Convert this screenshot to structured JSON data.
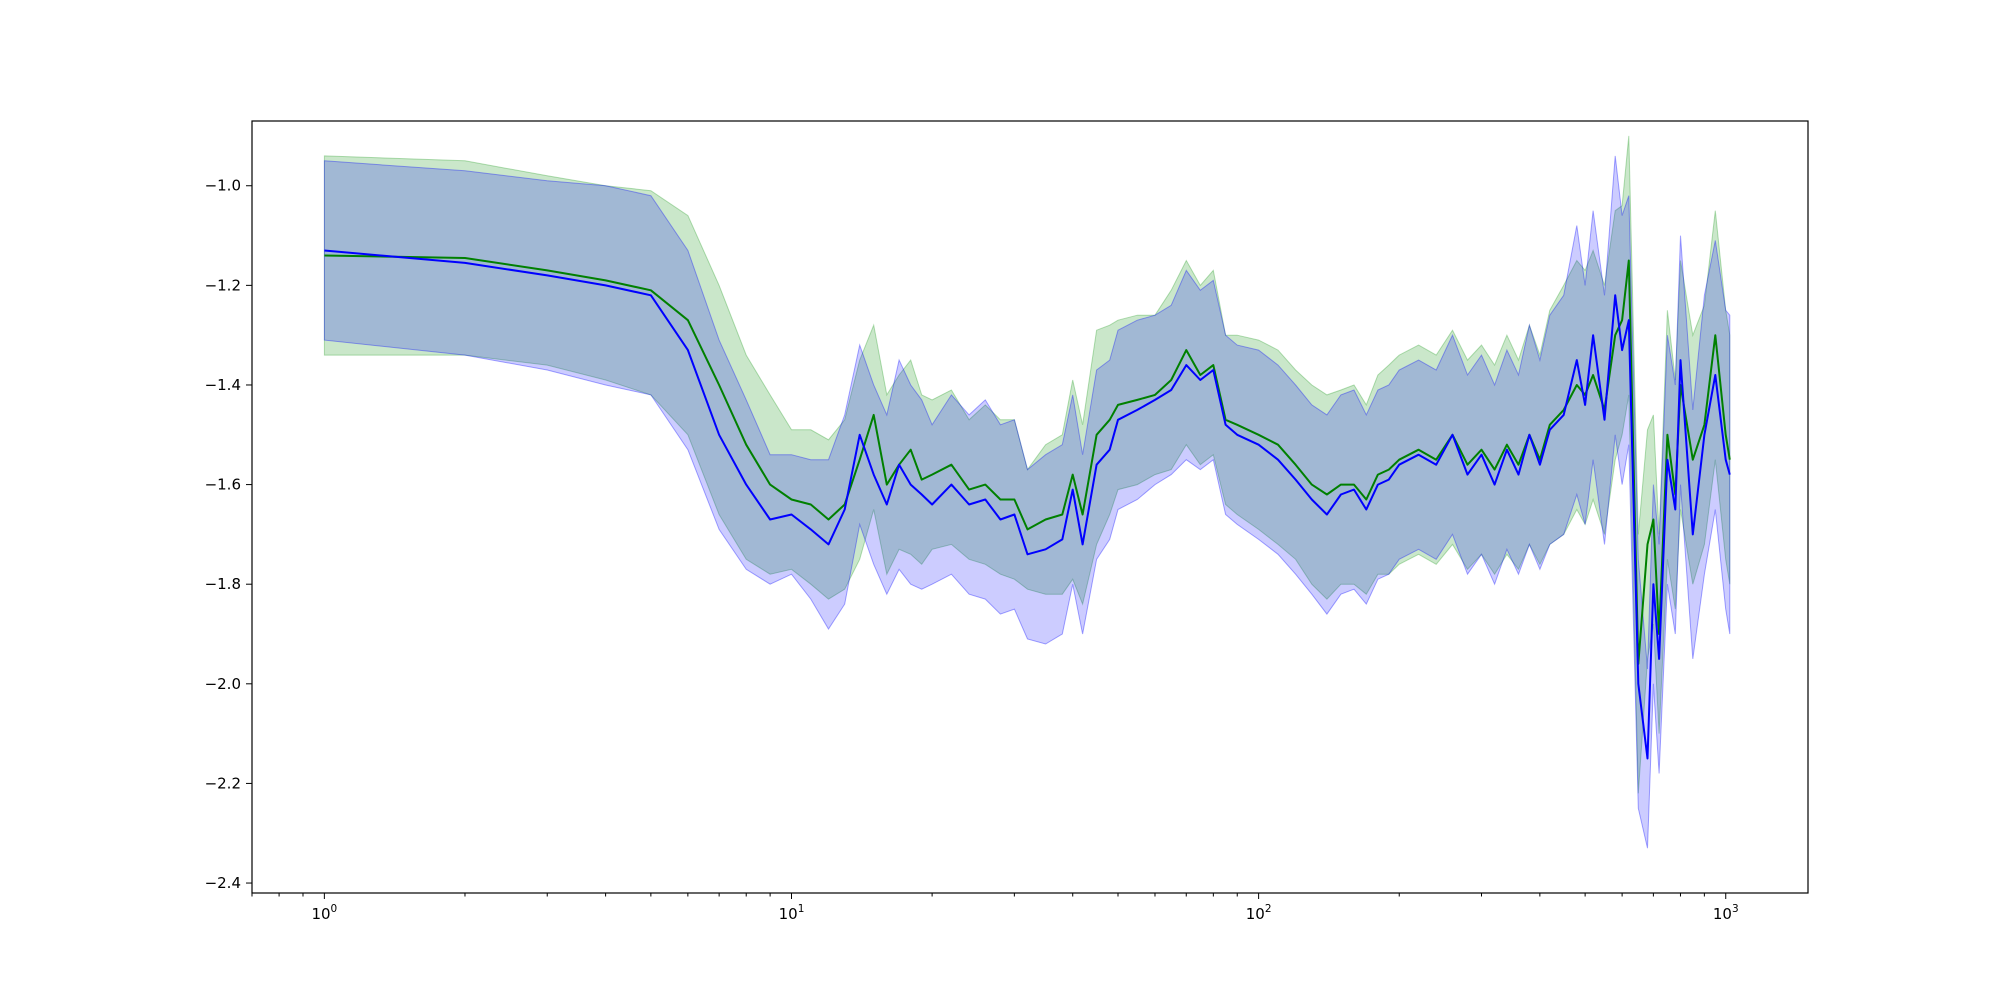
{
  "chart_data": {
    "type": "line",
    "title": "",
    "xlabel": "",
    "ylabel": "",
    "xscale": "log",
    "xlim": [
      0.7,
      1500
    ],
    "ylim": [
      -2.42,
      -0.87
    ],
    "grid": false,
    "legend": "none",
    "x_ticks": [
      {
        "base": "10",
        "exp": "0",
        "value": 1
      },
      {
        "base": "10",
        "exp": "1",
        "value": 10
      },
      {
        "base": "10",
        "exp": "2",
        "value": 100
      },
      {
        "base": "10",
        "exp": "3",
        "value": 1000
      }
    ],
    "y_ticks": [
      {
        "label": "−1.0",
        "value": -1.0
      },
      {
        "label": "−1.2",
        "value": -1.2
      },
      {
        "label": "−1.4",
        "value": -1.4
      },
      {
        "label": "−1.6",
        "value": -1.6
      },
      {
        "label": "−1.8",
        "value": -1.8
      },
      {
        "label": "−2.0",
        "value": -2.0
      },
      {
        "label": "−2.2",
        "value": -2.2
      },
      {
        "label": "−2.4",
        "value": -2.4
      }
    ],
    "series": [
      {
        "color": "#008000",
        "band_color": "#2ca02c",
        "band_opacity": 0.25,
        "x": [
          1,
          2,
          3,
          4,
          5,
          6,
          7,
          8,
          9,
          10,
          11,
          12,
          13,
          14,
          15,
          16,
          17,
          18,
          19,
          20,
          22,
          24,
          26,
          28,
          30,
          32,
          35,
          38,
          40,
          42,
          45,
          48,
          50,
          55,
          60,
          65,
          70,
          75,
          80,
          85,
          90,
          100,
          110,
          120,
          130,
          140,
          150,
          160,
          170,
          180,
          190,
          200,
          220,
          240,
          260,
          280,
          300,
          320,
          340,
          360,
          380,
          400,
          420,
          450,
          480,
          500,
          520,
          550,
          580,
          600,
          620,
          650,
          680,
          700,
          720,
          750,
          780,
          800,
          850,
          900,
          950,
          1000,
          1020
        ],
        "y": [
          -1.14,
          -1.145,
          -1.17,
          -1.19,
          -1.21,
          -1.27,
          -1.4,
          -1.52,
          -1.6,
          -1.63,
          -1.64,
          -1.67,
          -1.64,
          -1.55,
          -1.46,
          -1.6,
          -1.56,
          -1.53,
          -1.59,
          -1.58,
          -1.56,
          -1.61,
          -1.6,
          -1.63,
          -1.63,
          -1.69,
          -1.67,
          -1.66,
          -1.58,
          -1.66,
          -1.5,
          -1.47,
          -1.44,
          -1.43,
          -1.42,
          -1.39,
          -1.33,
          -1.38,
          -1.36,
          -1.47,
          -1.48,
          -1.5,
          -1.52,
          -1.56,
          -1.6,
          -1.62,
          -1.6,
          -1.6,
          -1.63,
          -1.58,
          -1.57,
          -1.55,
          -1.53,
          -1.55,
          -1.5,
          -1.56,
          -1.53,
          -1.57,
          -1.52,
          -1.56,
          -1.5,
          -1.55,
          -1.48,
          -1.45,
          -1.4,
          -1.42,
          -1.38,
          -1.45,
          -1.3,
          -1.27,
          -1.15,
          -1.96,
          -1.72,
          -1.67,
          -1.9,
          -1.5,
          -1.62,
          -1.4,
          -1.55,
          -1.48,
          -1.3,
          -1.5,
          -1.55
        ],
        "y_low": [
          -1.34,
          -1.34,
          -1.36,
          -1.39,
          -1.42,
          -1.5,
          -1.66,
          -1.75,
          -1.78,
          -1.77,
          -1.8,
          -1.83,
          -1.81,
          -1.75,
          -1.65,
          -1.78,
          -1.73,
          -1.74,
          -1.76,
          -1.73,
          -1.72,
          -1.75,
          -1.76,
          -1.78,
          -1.79,
          -1.81,
          -1.82,
          -1.82,
          -1.79,
          -1.84,
          -1.72,
          -1.66,
          -1.61,
          -1.6,
          -1.58,
          -1.57,
          -1.52,
          -1.56,
          -1.54,
          -1.64,
          -1.66,
          -1.69,
          -1.72,
          -1.75,
          -1.8,
          -1.83,
          -1.8,
          -1.8,
          -1.82,
          -1.78,
          -1.78,
          -1.76,
          -1.74,
          -1.76,
          -1.72,
          -1.77,
          -1.74,
          -1.78,
          -1.74,
          -1.77,
          -1.72,
          -1.76,
          -1.72,
          -1.7,
          -1.65,
          -1.68,
          -1.63,
          -1.7,
          -1.55,
          -1.5,
          -1.42,
          -2.22,
          -1.95,
          -1.88,
          -2.1,
          -1.75,
          -1.85,
          -1.65,
          -1.8,
          -1.72,
          -1.55,
          -1.75,
          -1.8
        ],
        "y_high": [
          -0.94,
          -0.95,
          -0.98,
          -1.0,
          -1.01,
          -1.06,
          -1.2,
          -1.34,
          -1.42,
          -1.49,
          -1.49,
          -1.51,
          -1.47,
          -1.35,
          -1.28,
          -1.42,
          -1.38,
          -1.35,
          -1.42,
          -1.43,
          -1.41,
          -1.47,
          -1.44,
          -1.47,
          -1.47,
          -1.57,
          -1.52,
          -1.5,
          -1.39,
          -1.48,
          -1.29,
          -1.28,
          -1.27,
          -1.26,
          -1.26,
          -1.21,
          -1.15,
          -1.2,
          -1.17,
          -1.3,
          -1.3,
          -1.31,
          -1.33,
          -1.37,
          -1.4,
          -1.42,
          -1.41,
          -1.4,
          -1.44,
          -1.38,
          -1.36,
          -1.34,
          -1.32,
          -1.34,
          -1.29,
          -1.35,
          -1.32,
          -1.36,
          -1.3,
          -1.35,
          -1.28,
          -1.34,
          -1.25,
          -1.2,
          -1.15,
          -1.17,
          -1.13,
          -1.2,
          -1.05,
          -1.04,
          -0.9,
          -1.7,
          -1.49,
          -1.46,
          -1.7,
          -1.25,
          -1.39,
          -1.15,
          -1.3,
          -1.24,
          -1.05,
          -1.25,
          -1.3
        ]
      },
      {
        "color": "#0000ff",
        "band_color": "#0000ff",
        "band_opacity": 0.2,
        "x": [
          1,
          2,
          3,
          4,
          5,
          6,
          7,
          8,
          9,
          10,
          11,
          12,
          13,
          14,
          15,
          16,
          17,
          18,
          19,
          20,
          22,
          24,
          26,
          28,
          30,
          32,
          35,
          38,
          40,
          42,
          45,
          48,
          50,
          55,
          60,
          65,
          70,
          75,
          80,
          85,
          90,
          100,
          110,
          120,
          130,
          140,
          150,
          160,
          170,
          180,
          190,
          200,
          220,
          240,
          260,
          280,
          300,
          320,
          340,
          360,
          380,
          400,
          420,
          450,
          480,
          500,
          520,
          550,
          580,
          600,
          620,
          650,
          680,
          700,
          720,
          750,
          780,
          800,
          850,
          900,
          950,
          1000,
          1020
        ],
        "y": [
          -1.13,
          -1.155,
          -1.18,
          -1.2,
          -1.22,
          -1.33,
          -1.5,
          -1.6,
          -1.67,
          -1.66,
          -1.69,
          -1.72,
          -1.65,
          -1.5,
          -1.58,
          -1.64,
          -1.56,
          -1.6,
          -1.62,
          -1.64,
          -1.6,
          -1.64,
          -1.63,
          -1.67,
          -1.66,
          -1.74,
          -1.73,
          -1.71,
          -1.61,
          -1.72,
          -1.56,
          -1.53,
          -1.47,
          -1.45,
          -1.43,
          -1.41,
          -1.36,
          -1.39,
          -1.37,
          -1.48,
          -1.5,
          -1.52,
          -1.55,
          -1.59,
          -1.63,
          -1.66,
          -1.62,
          -1.61,
          -1.65,
          -1.6,
          -1.59,
          -1.56,
          -1.54,
          -1.56,
          -1.5,
          -1.58,
          -1.54,
          -1.6,
          -1.53,
          -1.58,
          -1.5,
          -1.56,
          -1.49,
          -1.46,
          -1.35,
          -1.44,
          -1.3,
          -1.47,
          -1.22,
          -1.33,
          -1.27,
          -2.0,
          -2.15,
          -1.8,
          -1.95,
          -1.55,
          -1.65,
          -1.35,
          -1.7,
          -1.5,
          -1.38,
          -1.55,
          -1.58
        ],
        "y_low": [
          -1.31,
          -1.34,
          -1.37,
          -1.4,
          -1.42,
          -1.53,
          -1.69,
          -1.77,
          -1.8,
          -1.78,
          -1.83,
          -1.89,
          -1.84,
          -1.68,
          -1.76,
          -1.82,
          -1.77,
          -1.8,
          -1.81,
          -1.8,
          -1.78,
          -1.82,
          -1.83,
          -1.86,
          -1.85,
          -1.91,
          -1.92,
          -1.9,
          -1.8,
          -1.9,
          -1.75,
          -1.71,
          -1.65,
          -1.63,
          -1.6,
          -1.58,
          -1.55,
          -1.57,
          -1.55,
          -1.66,
          -1.68,
          -1.71,
          -1.74,
          -1.78,
          -1.82,
          -1.86,
          -1.82,
          -1.81,
          -1.84,
          -1.79,
          -1.78,
          -1.75,
          -1.73,
          -1.75,
          -1.7,
          -1.78,
          -1.74,
          -1.8,
          -1.73,
          -1.78,
          -1.72,
          -1.77,
          -1.72,
          -1.7,
          -1.62,
          -1.68,
          -1.55,
          -1.72,
          -1.5,
          -1.6,
          -1.52,
          -2.25,
          -2.33,
          -2.0,
          -2.18,
          -1.8,
          -1.9,
          -1.6,
          -1.95,
          -1.78,
          -1.65,
          -1.85,
          -1.9
        ],
        "y_high": [
          -0.95,
          -0.97,
          -0.99,
          -1.0,
          -1.02,
          -1.13,
          -1.31,
          -1.43,
          -1.54,
          -1.54,
          -1.55,
          -1.55,
          -1.46,
          -1.32,
          -1.4,
          -1.46,
          -1.35,
          -1.4,
          -1.43,
          -1.48,
          -1.42,
          -1.46,
          -1.43,
          -1.48,
          -1.47,
          -1.57,
          -1.54,
          -1.52,
          -1.42,
          -1.54,
          -1.37,
          -1.35,
          -1.29,
          -1.27,
          -1.26,
          -1.24,
          -1.17,
          -1.21,
          -1.19,
          -1.3,
          -1.32,
          -1.33,
          -1.36,
          -1.4,
          -1.44,
          -1.46,
          -1.42,
          -1.41,
          -1.46,
          -1.41,
          -1.4,
          -1.37,
          -1.35,
          -1.37,
          -1.3,
          -1.38,
          -1.34,
          -1.4,
          -1.33,
          -1.38,
          -1.28,
          -1.35,
          -1.26,
          -1.22,
          -1.08,
          -1.2,
          -1.05,
          -1.22,
          -0.94,
          -1.06,
          -1.02,
          -1.75,
          -1.97,
          -1.6,
          -1.72,
          -1.3,
          -1.4,
          -1.1,
          -1.45,
          -1.22,
          -1.11,
          -1.25,
          -1.26
        ]
      }
    ]
  }
}
